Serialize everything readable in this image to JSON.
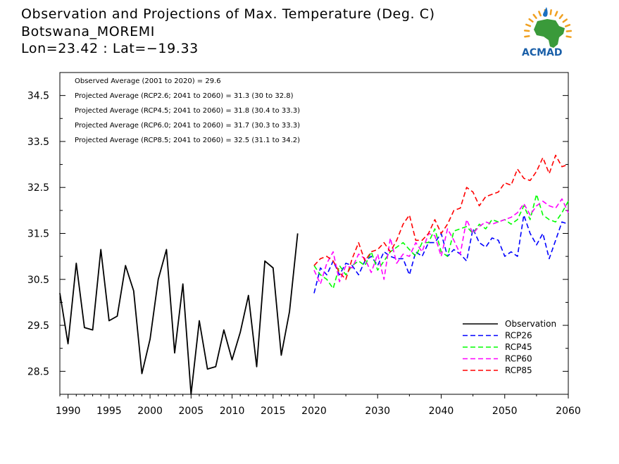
{
  "title_lines": [
    "Observation and Projections of Max. Temperature (Deg. C)",
    "Botswana_MOREMI",
    "Lon=23.42 : Lat=−19.33"
  ],
  "logo_text": "ACMAD",
  "annotations": [
    "Observed Average (2001 to 2020) = 29.6",
    "Projected Average (RCP2.6; 2041 to 2060) = 31.3 (30 to 32.8)",
    "Projected Average (RCP4.5; 2041 to 2060) = 31.8 (30.4 to 33.3)",
    "Projected Average (RCP6.0; 2041 to 2060) = 31.7 (30.3 to 33.3)",
    "Projected Average (RCP8.5; 2041 to 2060) = 32.5 (31.1 to 34.2)"
  ],
  "chart_data": {
    "type": "line",
    "title": "Observation and Projections of Max. Temperature (Deg. C)",
    "ylim": [
      28,
      35
    ],
    "y_ticks": [
      28.5,
      29.5,
      30.5,
      31.5,
      32.5,
      33.5,
      34.5
    ],
    "y_tick_labels": [
      "28.5",
      "29.5",
      "30.5",
      "31.5",
      "32.5",
      "33.5",
      "34.5"
    ],
    "x_left_axis": {
      "range": [
        1989,
        2020
      ],
      "ticks": [
        1990,
        1995,
        2000,
        2005,
        2010,
        2015,
        2020
      ]
    },
    "x_right_axis": {
      "range": [
        2020,
        2060
      ],
      "ticks": [
        2030,
        2040,
        2050,
        2060
      ]
    },
    "x_tick_labels": [
      "1990",
      "1995",
      "2000",
      "2005",
      "2010",
      "2015",
      "2020",
      "2030",
      "2040",
      "2050",
      "2060"
    ],
    "legend_position": "bottom-right",
    "grid": false,
    "series": [
      {
        "name": "Observation",
        "color": "#000000",
        "dashed": false,
        "x": [
          1989,
          1990,
          1991,
          1992,
          1993,
          1994,
          1995,
          1996,
          1997,
          1998,
          1999,
          2000,
          2001,
          2002,
          2003,
          2004,
          2005,
          2006,
          2007,
          2008,
          2009,
          2010,
          2011,
          2012,
          2013,
          2014,
          2015,
          2016,
          2017,
          2018,
          2019
        ],
        "values": [
          30.2,
          29.1,
          30.85,
          29.45,
          29.4,
          31.15,
          29.6,
          29.7,
          30.8,
          30.25,
          28.45,
          29.2,
          30.5,
          31.15,
          28.9,
          30.4,
          28.0,
          29.6,
          28.55,
          28.6,
          29.4,
          28.75,
          29.35,
          30.15,
          28.6,
          30.9,
          30.75,
          28.85,
          29.8,
          31.5,
          null
        ]
      },
      {
        "name": "RCP26",
        "color": "#0000ff",
        "dashed": true,
        "x": [
          2020,
          2021,
          2022,
          2023,
          2024,
          2025,
          2026,
          2027,
          2028,
          2029,
          2030,
          2031,
          2032,
          2033,
          2034,
          2035,
          2036,
          2037,
          2038,
          2039,
          2040,
          2041,
          2042,
          2043,
          2044,
          2045,
          2046,
          2047,
          2048,
          2049,
          2050,
          2051,
          2052,
          2053,
          2054,
          2055,
          2056,
          2057,
          2058,
          2059,
          2060
        ],
        "values": [
          30.2,
          30.75,
          30.6,
          30.9,
          30.6,
          30.85,
          30.8,
          30.6,
          30.9,
          31.0,
          30.8,
          31.1,
          31.0,
          30.95,
          30.95,
          30.6,
          31.1,
          31.0,
          31.3,
          31.3,
          31.5,
          31.0,
          31.15,
          31.05,
          30.9,
          31.6,
          31.3,
          31.2,
          31.4,
          31.35,
          31.0,
          31.1,
          31.0,
          31.9,
          31.5,
          31.25,
          31.5,
          30.95,
          31.35,
          31.75,
          31.7
        ]
      },
      {
        "name": "RCP45",
        "color": "#00ff00",
        "dashed": true,
        "x": [
          2020,
          2021,
          2022,
          2023,
          2024,
          2025,
          2026,
          2027,
          2028,
          2029,
          2030,
          2031,
          2032,
          2033,
          2034,
          2035,
          2036,
          2037,
          2038,
          2039,
          2040,
          2041,
          2042,
          2043,
          2044,
          2045,
          2046,
          2047,
          2048,
          2049,
          2050,
          2051,
          2052,
          2053,
          2054,
          2055,
          2056,
          2057,
          2058,
          2059,
          2060
        ],
        "values": [
          30.8,
          30.6,
          30.5,
          30.3,
          30.8,
          30.6,
          30.8,
          30.9,
          30.8,
          31.1,
          30.7,
          30.9,
          31.1,
          31.2,
          31.3,
          31.15,
          31.0,
          31.3,
          31.3,
          31.6,
          31.1,
          31.0,
          31.55,
          31.6,
          31.65,
          31.5,
          31.7,
          31.6,
          31.8,
          31.75,
          31.8,
          31.7,
          31.8,
          32.1,
          31.8,
          32.35,
          31.9,
          31.8,
          31.75,
          31.95,
          32.2
        ]
      },
      {
        "name": "RCP60",
        "color": "#ff00ff",
        "dashed": true,
        "x": [
          2020,
          2021,
          2022,
          2023,
          2024,
          2025,
          2026,
          2027,
          2028,
          2029,
          2030,
          2031,
          2032,
          2033,
          2034,
          2035,
          2036,
          2037,
          2038,
          2039,
          2040,
          2041,
          2042,
          2043,
          2044,
          2045,
          2046,
          2047,
          2048,
          2049,
          2050,
          2051,
          2052,
          2053,
          2054,
          2055,
          2056,
          2057,
          2058,
          2059,
          2060
        ],
        "values": [
          30.7,
          30.4,
          30.85,
          31.1,
          30.45,
          30.8,
          30.75,
          31.05,
          30.95,
          30.65,
          31.05,
          30.5,
          31.4,
          30.85,
          31.05,
          31.0,
          31.3,
          31.1,
          31.5,
          31.45,
          31.0,
          31.6,
          31.35,
          31.05,
          31.8,
          31.5,
          31.65,
          31.75,
          31.7,
          31.75,
          31.8,
          31.85,
          31.95,
          32.15,
          31.9,
          32.1,
          32.2,
          32.1,
          32.05,
          32.25,
          31.95
        ]
      },
      {
        "name": "RCP85",
        "color": "#ff0000",
        "dashed": true,
        "x": [
          2020,
          2021,
          2022,
          2023,
          2024,
          2025,
          2026,
          2027,
          2028,
          2029,
          2030,
          2031,
          2032,
          2033,
          2034,
          2035,
          2036,
          2037,
          2038,
          2039,
          2040,
          2041,
          2042,
          2043,
          2044,
          2045,
          2046,
          2047,
          2048,
          2049,
          2050,
          2051,
          2052,
          2053,
          2054,
          2055,
          2056,
          2057,
          2058,
          2059,
          2060
        ],
        "values": [
          30.8,
          30.95,
          31.0,
          30.9,
          30.65,
          30.5,
          30.95,
          31.3,
          30.9,
          31.1,
          31.15,
          31.3,
          31.1,
          31.35,
          31.7,
          31.9,
          31.35,
          31.35,
          31.5,
          31.8,
          31.5,
          31.7,
          32.0,
          32.05,
          32.5,
          32.4,
          32.1,
          32.3,
          32.35,
          32.4,
          32.6,
          32.55,
          32.9,
          32.7,
          32.65,
          32.85,
          33.15,
          32.8,
          33.2,
          32.95,
          33.0
        ]
      }
    ]
  }
}
